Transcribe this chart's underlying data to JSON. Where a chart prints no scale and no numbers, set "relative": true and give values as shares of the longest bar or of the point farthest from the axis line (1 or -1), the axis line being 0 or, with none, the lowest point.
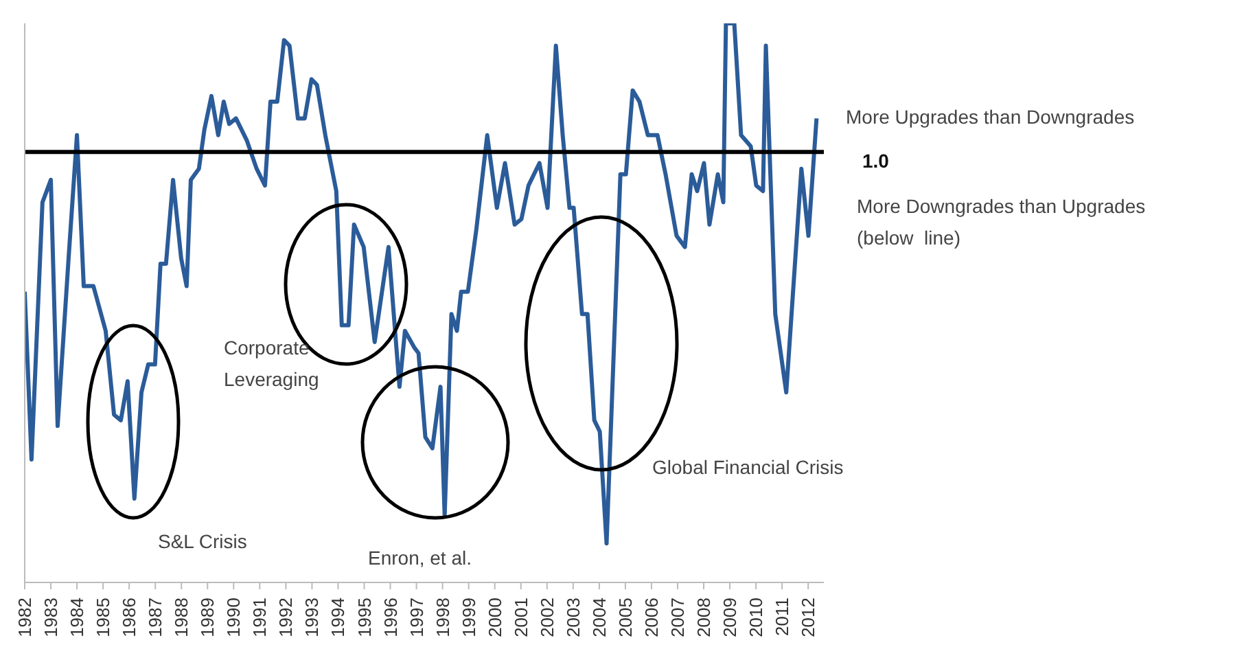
{
  "chart_data": {
    "type": "line",
    "relative": true,
    "marker": "none",
    "line_style": "solid",
    "xlim": [
      1982,
      2012.6
    ],
    "xticks": [
      1982,
      1983,
      1984,
      1985,
      1986,
      1987,
      1988,
      1989,
      1990,
      1991,
      1992,
      1993,
      1994,
      1995,
      1996,
      1997,
      1998,
      1999,
      2000,
      2001,
      2002,
      2003,
      2004,
      2005,
      2006,
      2007,
      2008,
      2009,
      2010,
      2011,
      2012
    ],
    "series": [
      {
        "color": "#2b5c99",
        "x": [
          1982.0,
          1982.26,
          1982.68,
          1983.0,
          1983.26,
          1983.68,
          1984.0,
          1984.26,
          1984.63,
          1985.1,
          1985.42,
          1985.68,
          1985.94,
          1986.2,
          1986.47,
          1986.73,
          1986.99,
          1987.2,
          1987.41,
          1987.68,
          1987.99,
          1988.2,
          1988.36,
          1988.67,
          1988.88,
          1989.15,
          1989.41,
          1989.62,
          1989.83,
          1990.09,
          1990.51,
          1990.88,
          1991.2,
          1991.41,
          1991.67,
          1991.93,
          1992.14,
          1992.46,
          1992.72,
          1992.98,
          1993.19,
          1993.51,
          1993.93,
          1994.14,
          1994.4,
          1994.61,
          1994.98,
          1995.4,
          1995.93,
          1996.35,
          1996.56,
          1996.92,
          1997.08,
          1997.34,
          1997.61,
          1997.92,
          1998.08,
          1998.34,
          1998.55,
          1998.71,
          1998.97,
          1999.29,
          1999.71,
          2000.08,
          2000.39,
          2000.76,
          2001.02,
          2001.29,
          2001.71,
          2002.02,
          2002.34,
          2002.6,
          2002.86,
          2003.02,
          2003.34,
          2003.55,
          2003.81,
          2004.02,
          2004.28,
          2004.81,
          2005.02,
          2005.28,
          2005.54,
          2005.86,
          2006.23,
          2006.54,
          2006.96,
          2007.28,
          2007.54,
          2007.75,
          2008.01,
          2008.22,
          2008.54,
          2008.75,
          2008.85,
          2009.17,
          2009.43,
          2009.8,
          2010.01,
          2010.27,
          2010.38,
          2010.74,
          2011.16,
          2011.74,
          2012.01,
          2012.32
        ],
        "values": [
          0.52,
          0.22,
          0.68,
          0.72,
          0.28,
          0.58,
          0.8,
          0.53,
          0.53,
          0.45,
          0.3,
          0.29,
          0.36,
          0.15,
          0.34,
          0.39,
          0.39,
          0.57,
          0.57,
          0.72,
          0.58,
          0.53,
          0.72,
          0.74,
          0.81,
          0.87,
          0.8,
          0.86,
          0.82,
          0.83,
          0.79,
          0.74,
          0.71,
          0.86,
          0.86,
          0.97,
          0.96,
          0.83,
          0.83,
          0.9,
          0.89,
          0.8,
          0.7,
          0.46,
          0.46,
          0.64,
          0.6,
          0.43,
          0.6,
          0.35,
          0.45,
          0.42,
          0.41,
          0.26,
          0.24,
          0.35,
          0.12,
          0.48,
          0.45,
          0.52,
          0.52,
          0.63,
          0.8,
          0.67,
          0.75,
          0.64,
          0.65,
          0.71,
          0.75,
          0.67,
          0.96,
          0.8,
          0.67,
          0.67,
          0.48,
          0.48,
          0.29,
          0.27,
          0.07,
          0.73,
          0.73,
          0.88,
          0.86,
          0.8,
          0.8,
          0.73,
          0.62,
          0.6,
          0.73,
          0.7,
          0.75,
          0.64,
          0.73,
          0.68,
          1.0,
          1.0,
          0.8,
          0.78,
          0.71,
          0.7,
          0.96,
          0.48,
          0.34,
          0.74,
          0.62,
          0.83
        ]
      }
    ],
    "ref_lines": [
      {
        "axis": "y",
        "value": 0.77,
        "color": "#000000"
      }
    ],
    "annotations": [
      "S&L Crisis",
      "Corporate Leveraging",
      "Enron, et al.",
      "Global Financial Crisis",
      "More Upgrades than Downgrades",
      "More Downgrades than Upgrades (below  line)",
      "1.0"
    ]
  }
}
